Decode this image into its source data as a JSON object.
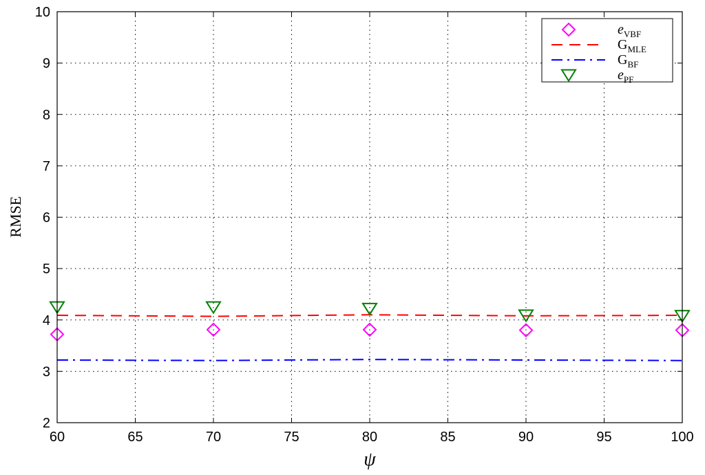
{
  "chart_data": {
    "type": "line",
    "title": "",
    "xlabel": "ψ",
    "ylabel": "RMSE",
    "xlim": [
      60,
      100
    ],
    "ylim": [
      2,
      10
    ],
    "xticks": [
      60,
      65,
      70,
      75,
      80,
      85,
      90,
      95,
      100
    ],
    "yticks": [
      2,
      3,
      4,
      5,
      6,
      7,
      8,
      9,
      10
    ],
    "grid": true,
    "legend_position": "top-right",
    "series": [
      {
        "name": "e",
        "name_sub": "VBF",
        "style": "marker",
        "marker": "diamond",
        "color": "#ff00ff",
        "x": [
          60,
          70,
          80,
          90,
          100
        ],
        "y": [
          3.72,
          3.81,
          3.81,
          3.8,
          3.8
        ]
      },
      {
        "name": "G",
        "name_sub": "MLE",
        "style": "dashed",
        "marker": "none",
        "color": "#ff0000",
        "x": [
          60,
          70,
          80,
          90,
          100
        ],
        "y": [
          4.09,
          4.07,
          4.1,
          4.08,
          4.09
        ]
      },
      {
        "name": "G",
        "name_sub": "BF",
        "style": "dashdot",
        "marker": "none",
        "color": "#0000ff",
        "x": [
          60,
          70,
          80,
          90,
          100
        ],
        "y": [
          3.22,
          3.21,
          3.23,
          3.22,
          3.21
        ]
      },
      {
        "name": "e",
        "name_sub": "PF",
        "style": "marker",
        "marker": "triangle-down",
        "color": "#008000",
        "x": [
          60,
          70,
          80,
          90,
          100
        ],
        "y": [
          4.25,
          4.25,
          4.22,
          4.09,
          4.08
        ]
      }
    ]
  }
}
